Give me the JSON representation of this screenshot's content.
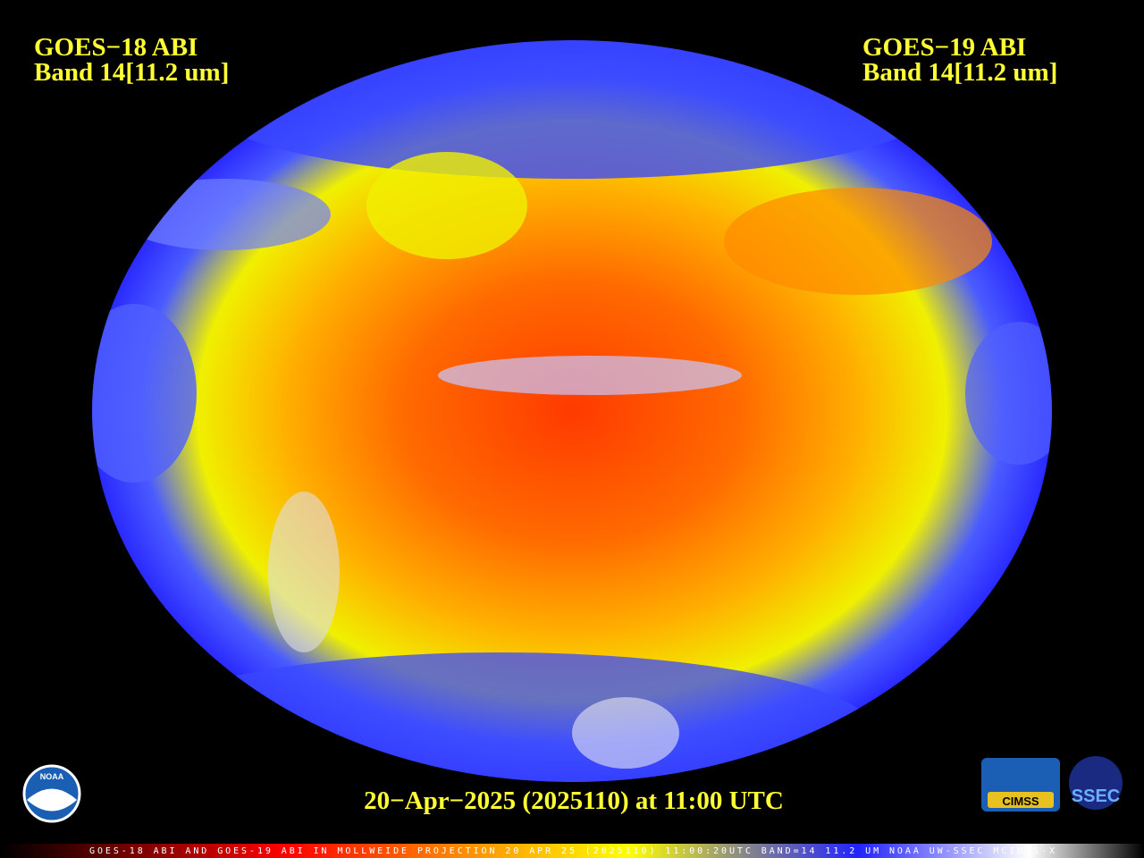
{
  "header": {
    "left": {
      "line1": "GOES−18 ABI",
      "line2": "Band 14[11.2 um]"
    },
    "right": {
      "line1": "GOES−19 ABI",
      "line2": "Band 14[11.2 um]"
    }
  },
  "timestamp": "20−Apr−2025 (2025110) at 11:00 UTC",
  "footer": "GOES-18 ABI AND GOES-19 ABI IN MOLLWEIDE PROJECTION 20 APR 25 (2025110) 11:00:20UTC BAND=14 11.2 UM NOAA UW-SSEC MCIDAS-X",
  "logos": {
    "noaa": "NOAA",
    "cimss": "CIMSS",
    "ssec": "SSEC"
  }
}
